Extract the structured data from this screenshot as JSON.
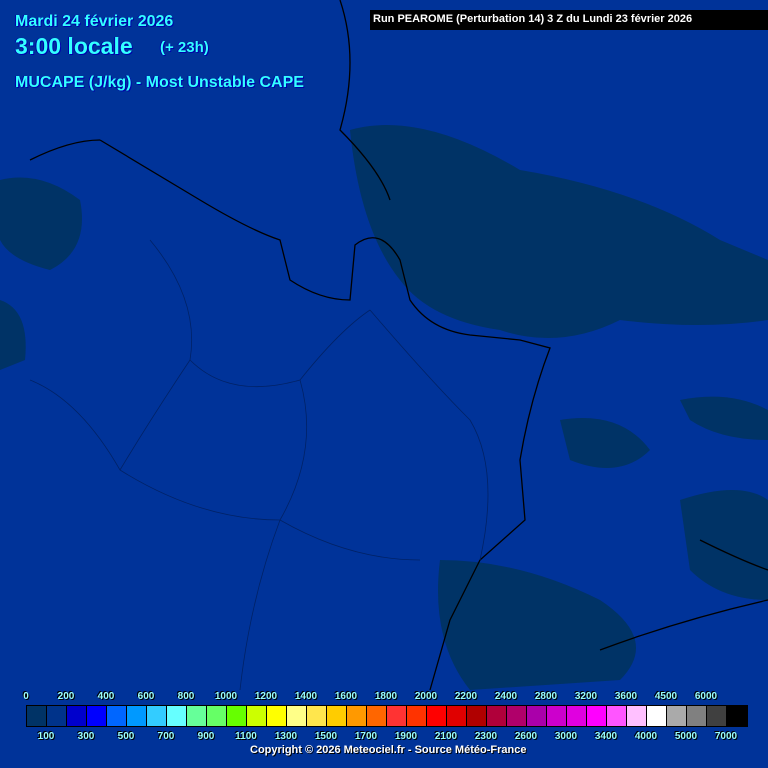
{
  "header": {
    "date": "Mardi 24 février 2026",
    "time": "3:00 locale",
    "offset": "(+ 23h)",
    "parameter": "MUCAPE (J/kg) - Most Unstable CAPE",
    "run": "Run PEAROME (Perturbation 14) 3 Z du Lundi 23 février 2026"
  },
  "map": {
    "background_color": "#003399",
    "low_cape_color": "#003366",
    "border_color": "#000000"
  },
  "legend": {
    "colors": [
      "#003366",
      "#00338a",
      "#0000cc",
      "#0000ff",
      "#0066ff",
      "#0099ff",
      "#33ccff",
      "#66ffff",
      "#66ff99",
      "#66ff66",
      "#66ff00",
      "#ccff00",
      "#ffff00",
      "#ffff88",
      "#ffe64d",
      "#ffcc00",
      "#ff9900",
      "#ff6600",
      "#ff3333",
      "#ff3300",
      "#ff0000",
      "#e00000",
      "#b00000",
      "#b0003a",
      "#b0006a",
      "#aa00aa",
      "#cc00cc",
      "#e000e0",
      "#ff00ff",
      "#ff55ff",
      "#ffc0ff",
      "#ffffff",
      "#aaaaaa",
      "#808080",
      "#404040",
      "#000000"
    ],
    "top_labels": [
      "0",
      "200",
      "400",
      "600",
      "800",
      "1000",
      "1200",
      "1400",
      "1600",
      "1800",
      "2000",
      "2200",
      "2400",
      "2800",
      "3200",
      "3600",
      "4500",
      "6000"
    ],
    "bottom_labels": [
      "100",
      "300",
      "500",
      "700",
      "900",
      "1100",
      "1300",
      "1500",
      "1700",
      "1900",
      "2100",
      "2300",
      "2600",
      "3000",
      "3400",
      "4000",
      "5000",
      "7000"
    ]
  },
  "footer": {
    "copyright": "Copyright © 2026 Meteociel.fr - Source Météo-France"
  }
}
